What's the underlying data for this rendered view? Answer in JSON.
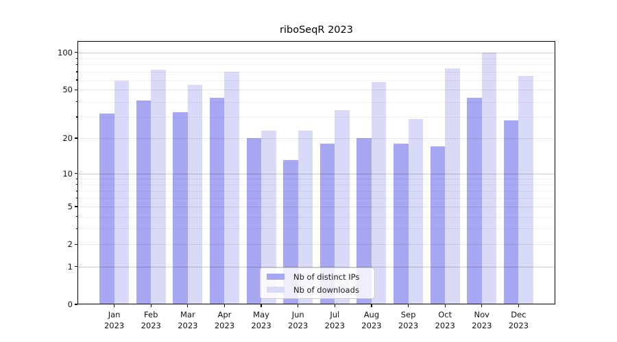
{
  "title": "riboSeqR 2023",
  "colors": {
    "ips_bar": "#a8a8f2",
    "downloads_bar": "#d9d9f8",
    "axis": "#000000"
  },
  "legend": {
    "items": [
      {
        "label": "Nb of distinct IPs",
        "series": "ips"
      },
      {
        "label": "Nb of downloads",
        "series": "downloads"
      }
    ]
  },
  "chart_data": {
    "type": "bar",
    "title": "riboSeqR 2023",
    "xlabel": "",
    "ylabel": "",
    "scale": "log1p",
    "year": "2023",
    "categories": [
      "Jan",
      "Feb",
      "Mar",
      "Apr",
      "May",
      "Jun",
      "Jul",
      "Aug",
      "Sep",
      "Oct",
      "Nov",
      "Dec"
    ],
    "series": [
      {
        "name": "Nb of distinct IPs",
        "color_key": "ips_bar",
        "values": [
          32,
          41,
          33,
          43,
          20,
          13,
          18,
          20,
          18,
          17,
          43,
          28
        ]
      },
      {
        "name": "Nb of downloads",
        "color_key": "downloads_bar",
        "values": [
          59,
          73,
          55,
          70,
          23,
          23,
          34,
          58,
          29,
          74,
          100,
          65
        ]
      }
    ],
    "yticks": [
      0,
      1,
      2,
      5,
      10,
      20,
      50,
      100
    ],
    "minor_gridlines": [
      3,
      4,
      6,
      7,
      8,
      9,
      30,
      40,
      60,
      70,
      80,
      90
    ],
    "ylim": [
      0,
      124
    ],
    "grid": true,
    "legend_position": "bottom-center"
  }
}
